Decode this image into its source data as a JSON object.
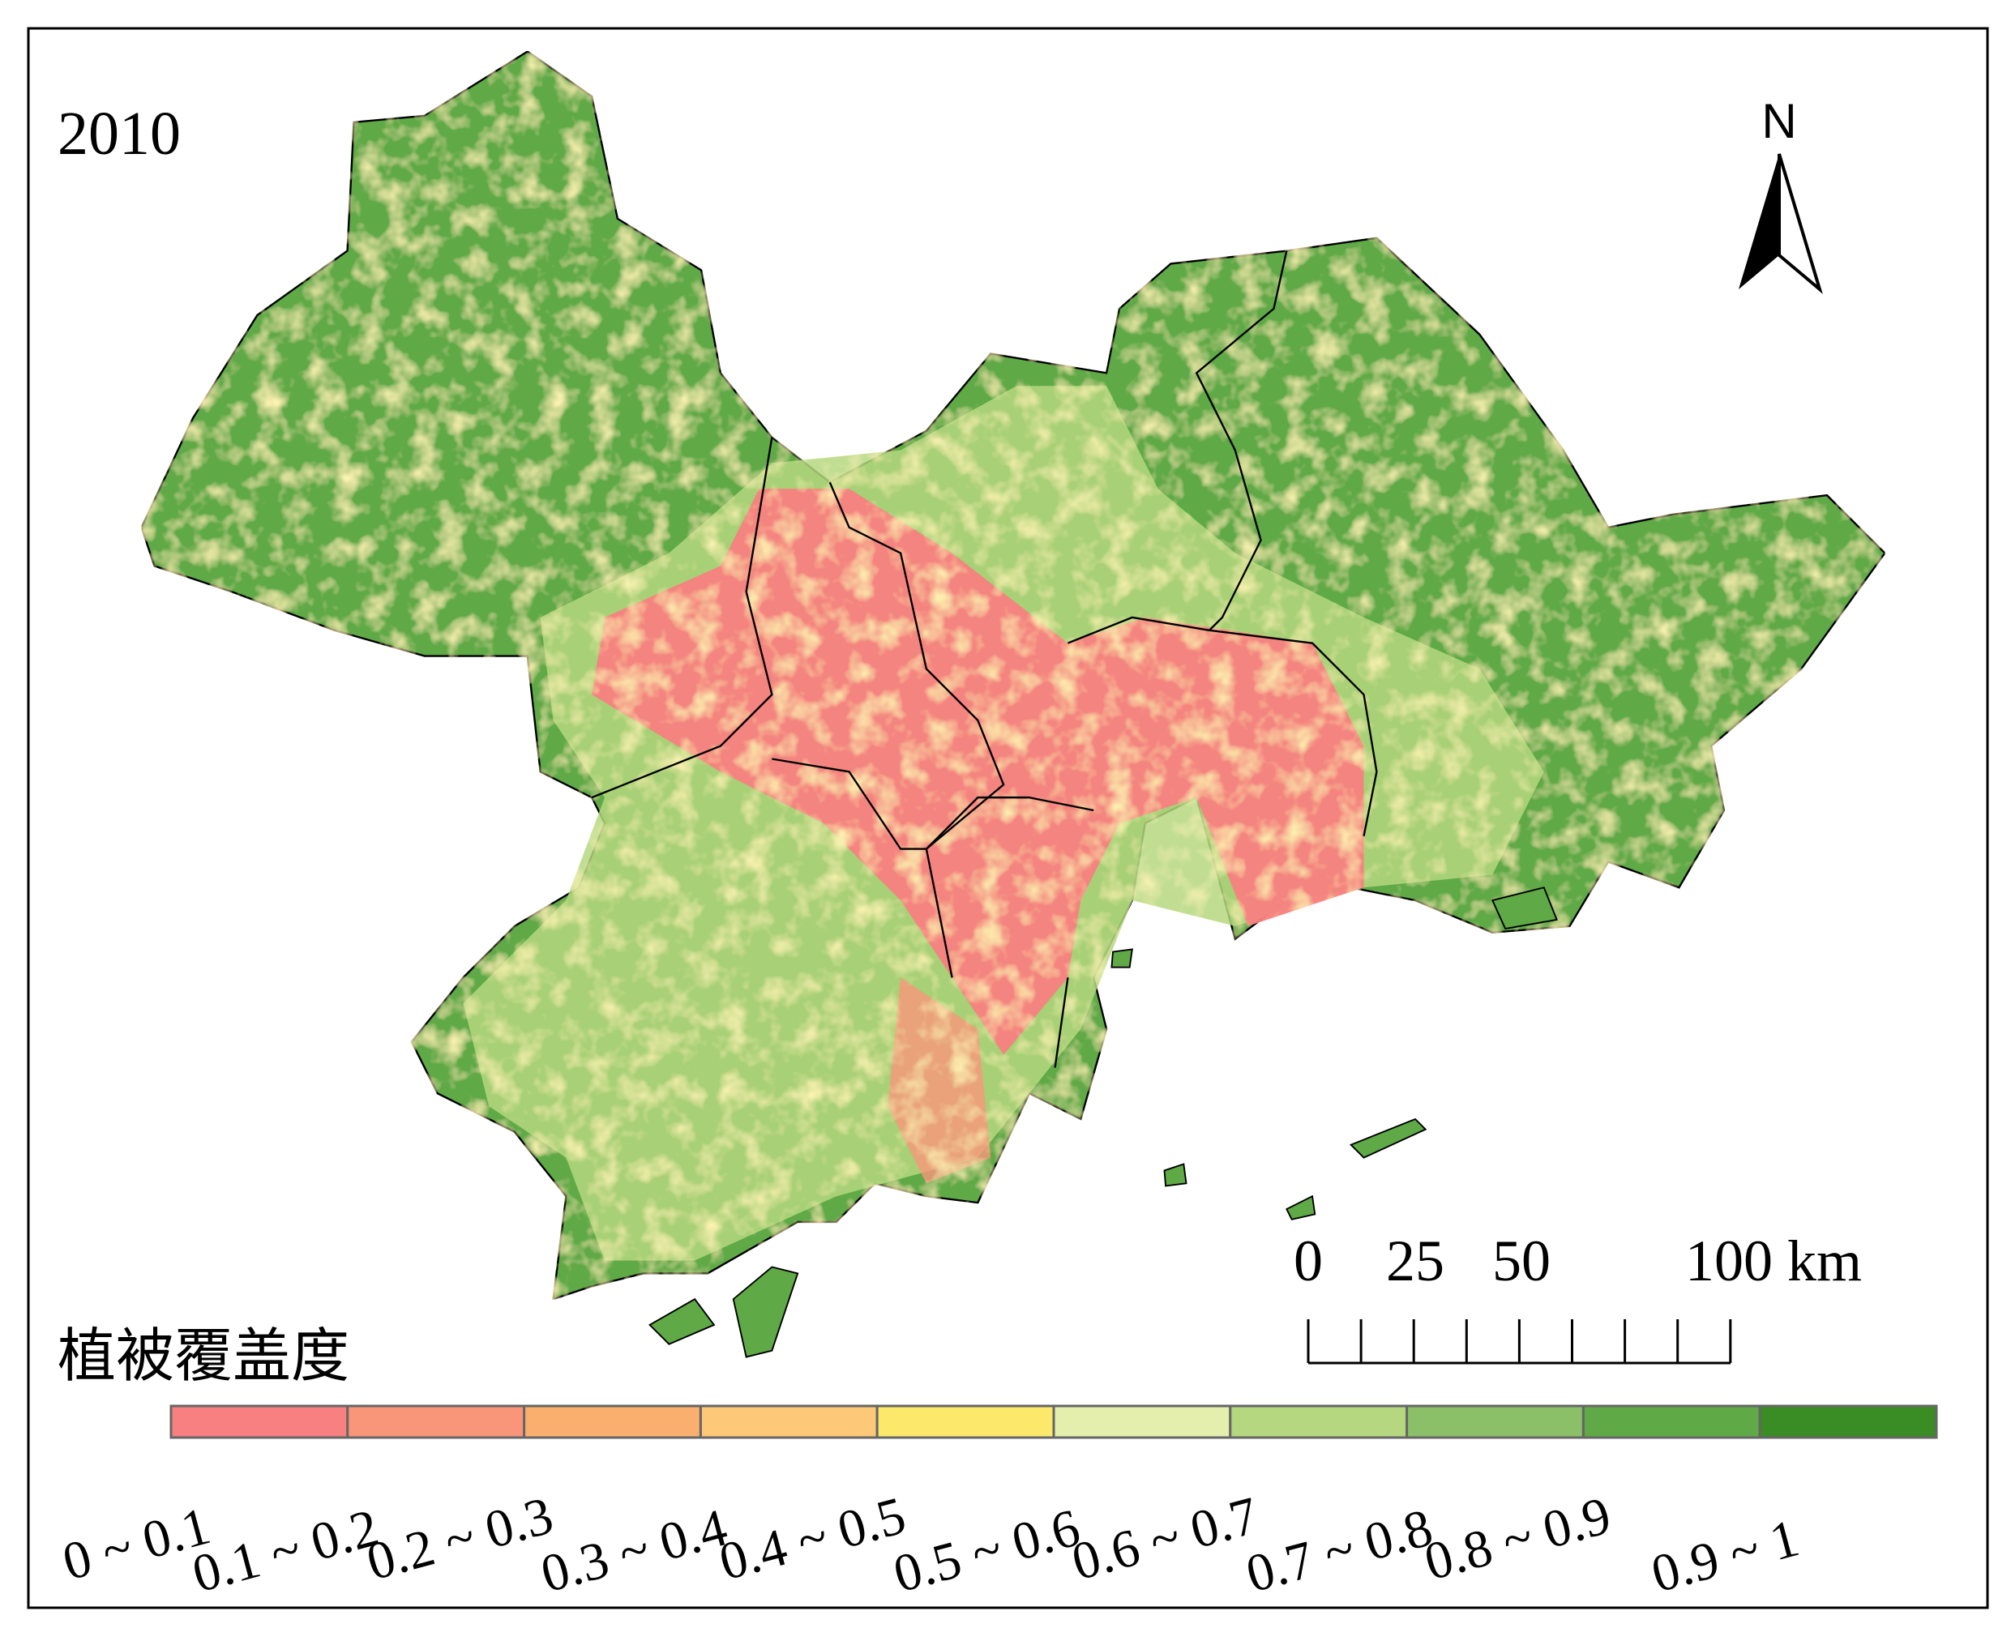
{
  "map": {
    "year": "2010",
    "north": "N",
    "scale_bar": {
      "labels": [
        "0",
        "25",
        "50",
        "100 km"
      ]
    },
    "legend": {
      "title": "植被覆盖度",
      "items": [
        {
          "label": "0 ~ 0.1",
          "color": "#f88080"
        },
        {
          "label": "0.1 ~ 0.2",
          "color": "#f9967a"
        },
        {
          "label": "0.2 ~ 0.3",
          "color": "#fbaf6e"
        },
        {
          "label": "0.3 ~ 0.4",
          "color": "#fdc877"
        },
        {
          "label": "0.4 ~ 0.5",
          "color": "#fce96b"
        },
        {
          "label": "0.5 ~ 0.6",
          "color": "#e4efae"
        },
        {
          "label": "0.6 ~ 0.7",
          "color": "#b5d77f"
        },
        {
          "label": "0.7 ~ 0.8",
          "color": "#8cc068"
        },
        {
          "label": "0.8 ~ 0.9",
          "color": "#5fa947"
        },
        {
          "label": "0.9 ~ 1",
          "color": "#3a8c25"
        }
      ]
    }
  }
}
